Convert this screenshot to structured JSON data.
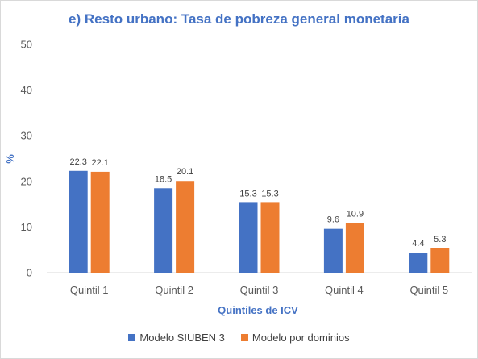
{
  "chart_data": {
    "type": "bar",
    "title": "e) Resto urbano: Tasa de pobreza general monetaria",
    "xlabel": "Quintiles de ICV",
    "ylabel": "%",
    "ylim": [
      0,
      50
    ],
    "yticks": [
      0,
      10,
      20,
      30,
      40,
      50
    ],
    "grid": false,
    "legend_position": "bottom",
    "categories": [
      "Quintil 1",
      "Quintil 2",
      "Quintil 3",
      "Quintil 4",
      "Quintil 5"
    ],
    "series": [
      {
        "name": "Modelo SIUBEN 3",
        "color": "#4472c4",
        "values": [
          22.3,
          18.5,
          15.3,
          9.6,
          4.4
        ],
        "labels": [
          "22.3",
          "18.5",
          "15.3",
          "9.6",
          "4.4"
        ]
      },
      {
        "name": "Modelo por dominios",
        "color": "#ed7d31",
        "values": [
          22.1,
          20.1,
          15.3,
          10.9,
          5.3
        ],
        "labels": [
          "22.1",
          "20.1",
          "15.3",
          "10.9",
          "5.3"
        ]
      }
    ]
  }
}
